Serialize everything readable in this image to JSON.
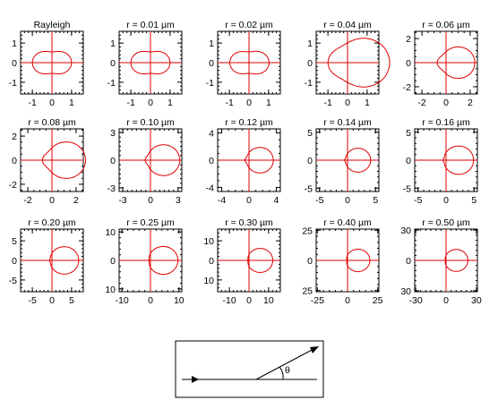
{
  "chart_data": [
    {
      "type": "scatter",
      "title": "Rayleigh",
      "lim": 1.6,
      "ticks": [
        -1,
        0,
        1
      ],
      "tick_labels": [
        "-1",
        "0",
        "1"
      ],
      "y_labels": [
        "1",
        "0",
        "-1"
      ],
      "minor": 0.2,
      "a": 1.0,
      "b": 1.0
    },
    {
      "type": "scatter",
      "title": "r = 0.01 µm",
      "lim": 1.6,
      "ticks": [
        -1,
        0,
        1
      ],
      "tick_labels": [
        "-1",
        "0",
        "1"
      ],
      "y_labels": [
        "1",
        "0",
        "-1"
      ],
      "minor": 0.2,
      "a": 1.0,
      "b": 1.0
    },
    {
      "type": "scatter",
      "title": "r = 0.02 µm",
      "lim": 1.6,
      "ticks": [
        -1,
        0,
        1
      ],
      "tick_labels": [
        "-1",
        "0",
        "1"
      ],
      "y_labels": [
        "1",
        "0",
        "-1"
      ],
      "minor": 0.2,
      "a": 1.0,
      "b": 1.04
    },
    {
      "type": "scatter",
      "title": "r = 0.04 µm",
      "lim": 1.6,
      "ticks": [
        -1,
        0,
        1
      ],
      "tick_labels": [
        "-1",
        "0",
        "1"
      ],
      "y_labels": [
        "1",
        "0",
        "-1"
      ],
      "minor": 0.2,
      "a": 0.95,
      "b": 1.15
    },
    {
      "type": "scatter",
      "title": "r = 0.06 µm",
      "lim": 2.6,
      "ticks": [
        -2,
        0,
        2
      ],
      "tick_labels": [
        "-2",
        "0",
        "2"
      ],
      "y_labels": [
        "2",
        "0",
        "-2"
      ],
      "minor": 0.5,
      "a": 0.7,
      "b": 1.65
    },
    {
      "type": "scatter",
      "title": "r = 0.08 µm",
      "lim": 2.6,
      "ticks": [
        -2,
        0,
        2
      ],
      "tick_labels": [
        "-2",
        "0",
        "2"
      ],
      "y_labels": [
        "2",
        "0",
        "-2"
      ],
      "minor": 0.5,
      "a": 0.75,
      "b": 2.0
    },
    {
      "type": "scatter",
      "title": "r = 0.10 µm",
      "lim": 3.4,
      "ticks": [
        -3,
        0,
        3
      ],
      "tick_labels": [
        "-3",
        "0",
        "3"
      ],
      "y_labels": [
        "3",
        "0",
        "-3"
      ],
      "minor": 0.5,
      "a": 0.55,
      "b": 2.6
    },
    {
      "type": "scatter",
      "title": "r = 0.12 µm",
      "lim": 4.6,
      "ticks": [
        -4,
        0,
        4
      ],
      "tick_labels": [
        "-4",
        "0",
        "4"
      ],
      "y_labels": [
        "4",
        "0",
        "-4"
      ],
      "minor": 1,
      "a": 0.55,
      "b": 3.0
    },
    {
      "type": "scatter",
      "title": "r = 0.14 µm",
      "lim": 5.6,
      "ticks": [
        -5,
        0,
        5
      ],
      "tick_labels": [
        "-5",
        "0",
        "5"
      ],
      "y_labels": [
        "5",
        "0",
        "-5"
      ],
      "minor": 1,
      "a": 0.5,
      "b": 3.6
    },
    {
      "type": "scatter",
      "title": "r = 0.16 µm",
      "lim": 5.6,
      "ticks": [
        -5,
        0,
        5
      ],
      "tick_labels": [
        "-5",
        "0",
        "5"
      ],
      "y_labels": [
        "5",
        "0",
        "-5"
      ],
      "minor": 1,
      "a": 0.5,
      "b": 4.4
    },
    {
      "type": "scatter",
      "title": "r = 0.20 µm",
      "lim": 8,
      "ticks": [
        -5,
        0,
        5
      ],
      "tick_labels": [
        "-5",
        "0",
        "5"
      ],
      "y_labels": [
        "5",
        "0",
        "-5"
      ],
      "minor": 1,
      "a": 0.6,
      "b": 6.2
    },
    {
      "type": "scatter",
      "title": "r = 0.25 µm",
      "lim": 11,
      "ticks": [
        -10,
        0,
        10
      ],
      "tick_labels": [
        "-10",
        "0",
        "10"
      ],
      "y_labels": [
        "10",
        "0",
        "10"
      ],
      "minor": 2,
      "a": 0.6,
      "b": 9.0
    },
    {
      "type": "scatter",
      "title": "r = 0.30 µm",
      "lim": 16,
      "ticks": [
        -10,
        0,
        10
      ],
      "tick_labels": [
        "-10",
        "0",
        "10"
      ],
      "y_labels": [
        "10",
        "0",
        "10"
      ],
      "minor": 2,
      "a": 0.6,
      "b": 11.5
    },
    {
      "type": "scatter",
      "title": "r = 0.40 µm",
      "lim": 26,
      "ticks": [
        -25,
        0,
        25
      ],
      "tick_labels": [
        "-25",
        "0",
        "25"
      ],
      "y_labels": [
        "25",
        "0",
        "25"
      ],
      "minor": 5,
      "a": 0.5,
      "b": 18.0
    },
    {
      "type": "scatter",
      "title": "r = 0.50 µm",
      "lim": 31,
      "ticks": [
        -30,
        0,
        30
      ],
      "tick_labels": [
        "-30",
        "0",
        "30"
      ],
      "y_labels": [
        "30",
        "0",
        "30"
      ],
      "minor": 5,
      "a": 0.55,
      "b": 21.0
    }
  ],
  "inset": {
    "theta_label": "θ"
  },
  "colors": {
    "curve": "#e00000",
    "axes": "#e00000",
    "frame": "#000000"
  }
}
